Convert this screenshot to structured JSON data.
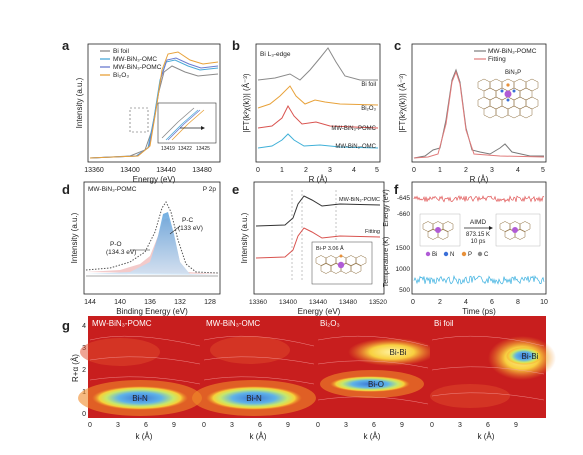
{
  "panels": {
    "a": {
      "letter": "a",
      "legend": [
        "Bi foil",
        "MW-BiN₃-OMC",
        "MW-BiN₃-POMC",
        "Bi₂O₃"
      ],
      "colors": [
        "#8a8a8a",
        "#4aa9d8",
        "#6a7bd0",
        "#e8a23a"
      ],
      "ylabel": "Intensity (a.u.)",
      "xlabel": "Energy (eV)",
      "xticks": [
        "13360",
        "13400",
        "13440",
        "13480"
      ],
      "inset_ticks": [
        "13419",
        "13422",
        "13425"
      ]
    },
    "b": {
      "letter": "b",
      "note": "Bi L₃-edge",
      "ylabel": "|FT(k²χ(k))| (Å⁻³)",
      "xlabel": "R (Å)",
      "xticks": [
        "0",
        "1",
        "2",
        "3",
        "4",
        "5"
      ],
      "labels": [
        "Bi foil",
        "Bi₂O₃",
        "MW-BiN₃-POMC",
        "MW-BiN₃-OMC"
      ],
      "colors": [
        "#8a8a8a",
        "#e8a23a",
        "#d9534f",
        "#3fb0d8"
      ]
    },
    "c": {
      "letter": "c",
      "legend": [
        "MW-BiN₃-POMC",
        "Fitting"
      ],
      "colors": [
        "#7a7a7a",
        "#e07a7a"
      ],
      "inset_label": "BiN₃P",
      "ylabel": "|FT(k²χ(k))| (Å⁻³)",
      "xlabel": "R (Å)",
      "xticks": [
        "0",
        "1",
        "2",
        "3",
        "4",
        "5"
      ]
    },
    "d": {
      "letter": "d",
      "title": "MW-BiN₃-POMC",
      "note": "P 2p",
      "peak1": "P-O",
      "peak1_ev": "(134.3 eV)",
      "peak2": "P-C",
      "peak2_ev": "(133 eV)",
      "ylabel": "Intensity (a.u.)",
      "xlabel": "Binding Energy (eV)",
      "xticks": [
        "144",
        "140",
        "136",
        "132",
        "128"
      ]
    },
    "e": {
      "letter": "e",
      "label1": "MW-BiN₃-POMC",
      "label2": "Fitting",
      "inset_label": "Bi-P 3.06 Å",
      "ylabel": "Intensity (a.u.)",
      "xlabel": "Energy (eV)",
      "xticks": [
        "13360",
        "13400",
        "13440",
        "13480",
        "13520"
      ]
    },
    "f": {
      "letter": "f",
      "ylabel_top": "Energy (eV)",
      "ylabel_bottom": "Temperature (K)",
      "xlabel": "Time (ps)",
      "yticks_top": [
        "-645",
        "-660"
      ],
      "yticks_bottom": [
        "1500",
        "1000",
        "500"
      ],
      "xticks": [
        "0",
        "2",
        "4",
        "6",
        "8",
        "10"
      ],
      "aimd": "AIMD",
      "aimd_temp": "873.15 K",
      "aimd_time": "10 ps",
      "legend": [
        "Bi",
        "N",
        "P",
        "C"
      ],
      "legend_colors": [
        "#b05bd6",
        "#3a6fd8",
        "#e8913a",
        "#8a8a8a"
      ]
    },
    "g": {
      "letter": "g",
      "ylabel": "R+α (Å)",
      "xlabel": "k (Å)",
      "maps": [
        {
          "title": "MW-BiN₃-POMC",
          "label1": "Bi-N",
          "label2": ""
        },
        {
          "title": "MW-BiN₃-OMC",
          "label1": "Bi-N",
          "label2": ""
        },
        {
          "title": "Bi₂O₃",
          "label1": "Bi-O",
          "label2": "Bi-Bi"
        },
        {
          "title": "Bi foil",
          "label1": "Bi-Bi",
          "label2": ""
        }
      ],
      "xticks": [
        "0",
        "3",
        "6",
        "9"
      ],
      "yticks": [
        "4",
        "3",
        "2",
        "1",
        "0"
      ]
    }
  }
}
